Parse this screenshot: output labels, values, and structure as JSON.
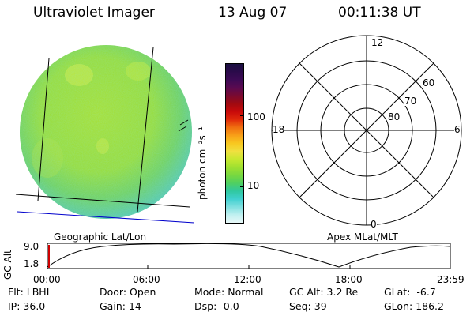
{
  "header": {
    "instrument": "Ultraviolet Imager",
    "date": "13 Aug 07",
    "time": "00:11:38 UT"
  },
  "colorbar": {
    "unit_label": "photon cm⁻²s⁻¹",
    "ticks": [
      "100",
      "10"
    ],
    "colors": [
      "#1a1040",
      "#2b0a4a",
      "#3d0a55",
      "#5a0a50",
      "#7a0a30",
      "#a00a10",
      "#c80a0a",
      "#e02a0a",
      "#f07010",
      "#f8a018",
      "#f8c820",
      "#f0e040",
      "#c8e830",
      "#a0e030",
      "#78d840",
      "#50d060",
      "#30c8a0",
      "#40d0d0",
      "#80e0e0",
      "#c0f0f0",
      "#e8f8f8"
    ]
  },
  "polar_grid": {
    "labels": [
      "12",
      "6",
      "0",
      "18",
      "60",
      "70",
      "80"
    ]
  },
  "map_labels": {
    "left": "Geographic Lat/Lon",
    "right": "Apex MLat/MLT"
  },
  "orbit_plot": {
    "ylabel": "GC Alt",
    "yticks": [
      "9.0",
      "1.8"
    ],
    "xticks": [
      "00:00",
      "06:00",
      "12:00",
      "18:00",
      "23:59"
    ],
    "marker_color": "#d00000"
  },
  "info": {
    "row1": [
      {
        "label": "Flt:",
        "value": "LBHL"
      },
      {
        "label": "Door:",
        "value": "Open"
      },
      {
        "label": "Mode:",
        "value": "Normal"
      },
      {
        "label": "GC Alt:",
        "value": "3.2 Re"
      },
      {
        "label": "GLat:",
        "value": "-6.7"
      }
    ],
    "row2": [
      {
        "label": "IP:",
        "value": "36.0"
      },
      {
        "label": "Gain:",
        "value": "14"
      },
      {
        "label": "Dsp:",
        "value": "-0.0"
      },
      {
        "label": "Seq:",
        "value": "39"
      },
      {
        "label": "GLon:",
        "value": "186.2"
      }
    ]
  }
}
